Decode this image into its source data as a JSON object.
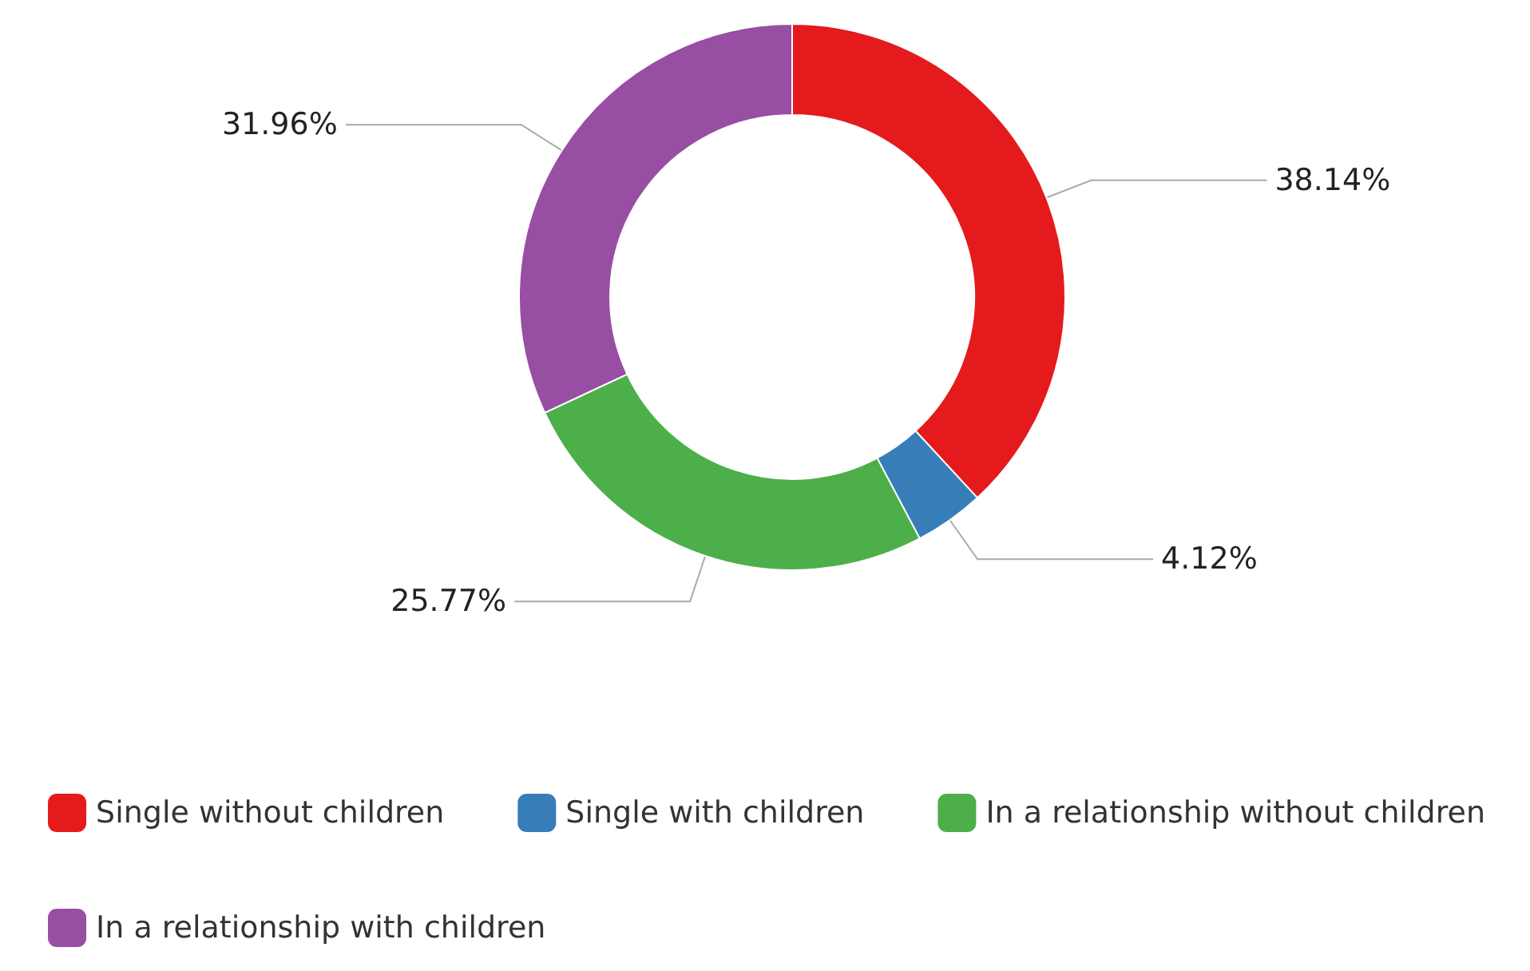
{
  "chart_data": {
    "type": "donut",
    "categories": [
      "Single without children",
      "Single with children",
      "In a relationship without children",
      "In a relationship with children"
    ],
    "values": [
      38.14,
      4.12,
      25.77,
      31.96
    ],
    "colors": [
      "#e41a1c",
      "#377eb8",
      "#4daf4a",
      "#984ea3"
    ],
    "value_labels": [
      "38.14%",
      "4.12%",
      "25.77%",
      "31.96%"
    ],
    "legend": "bottom"
  }
}
